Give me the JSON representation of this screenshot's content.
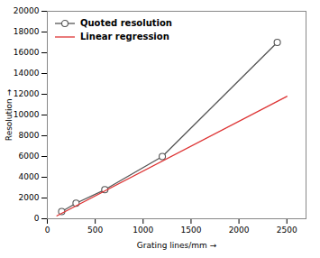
{
  "chart_data": {
    "type": "line",
    "xlabel": "Grating lines/mm",
    "ylabel": "Resolution",
    "series": [
      {
        "name": "Quoted resolution",
        "color": "#555555",
        "marker": "circle",
        "line_style": "solid",
        "x": [
          150,
          300,
          600,
          1200,
          2400
        ],
        "values": [
          700,
          1500,
          2800,
          6000,
          17000
        ]
      },
      {
        "name": "Linear regression",
        "color": "#dd3333",
        "line_style": "solid",
        "x": [
          100,
          2500
        ],
        "values": [
          280,
          11800
        ]
      }
    ],
    "xlim": [
      0,
      2700
    ],
    "ylim": [
      0,
      20000
    ],
    "xticks": [
      0,
      500,
      1000,
      1500,
      2000,
      2500
    ],
    "yticks": [
      0,
      2000,
      4000,
      6000,
      8000,
      10000,
      12000,
      14000,
      16000,
      18000,
      20000
    ],
    "grid": false,
    "legend": "upper left"
  }
}
